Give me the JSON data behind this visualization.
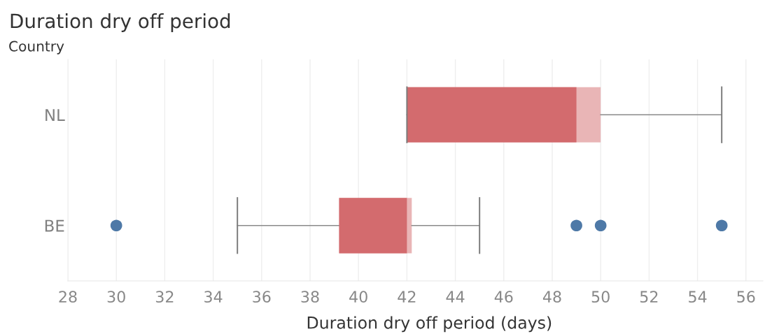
{
  "chart_data": {
    "type": "box",
    "orientation": "horizontal",
    "title": "Duration dry off period",
    "ylabel": "Country",
    "xlabel": "Duration dry off period (days)",
    "categories": [
      "NL",
      "BE"
    ],
    "series": [
      {
        "color": "#d36b6e",
        "boxes": [
          {
            "low": 42,
            "q1": 42,
            "median": 49,
            "q3": 50,
            "high": 55
          },
          {
            "low": 35,
            "q1": 39.2,
            "median": 42,
            "q3": 42.2,
            "high": 45
          }
        ]
      },
      {
        "type": "scatter",
        "color": "#4e79a7",
        "marker": "circle",
        "x": [
          "BE",
          "BE",
          "BE",
          "BE"
        ],
        "values": [
          30,
          49,
          50,
          55
        ]
      }
    ],
    "xlim": [
      28,
      56.7
    ],
    "xticks": [
      28,
      30,
      32,
      34,
      36,
      38,
      40,
      42,
      44,
      46,
      48,
      50,
      52,
      54,
      56
    ],
    "grid": "x",
    "legend": false
  }
}
